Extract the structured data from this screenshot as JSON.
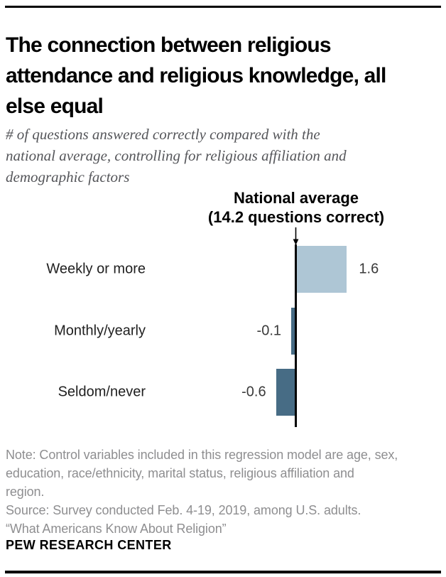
{
  "header": {
    "title": "The connection between religious attendance and religious knowledge, all else equal",
    "title_lines": [
      "The connection between religious",
      "attendance and religious knowledge, all",
      "else equal"
    ],
    "subtitle": "# of questions answered correctly compared with the national average, controlling for religious affiliation and demographic factors",
    "subtitle_lines": [
      "# of questions answered correctly compared with the",
      "national average, controlling for religious affiliation and",
      "demographic factors"
    ]
  },
  "chart_data": {
    "type": "bar",
    "orientation": "horizontal",
    "title": "The connection between religious attendance and religious knowledge, all else equal",
    "categories": [
      "Weekly or more",
      "Monthly/yearly",
      "Seldom/never"
    ],
    "values": [
      1.6,
      -0.1,
      -0.6
    ],
    "value_labels": [
      "1.6",
      "-0.1",
      "-0.6"
    ],
    "baseline_value": 14.2,
    "baseline_annotation_lines": [
      "National average",
      "(14.2 questions correct)"
    ],
    "bar_colors": [
      "#aec6d5",
      "#476c85",
      "#476c85"
    ],
    "axis_color": "#000000",
    "grid": false,
    "legend": false
  },
  "notes": {
    "note_lines": [
      "Note: Control variables included in this regression model are age, sex,",
      "education, race/ethnicity, marital status, religious affiliation and",
      "region."
    ],
    "source_line": "Source: Survey conducted Feb. 4-19, 2019, among U.S. adults.",
    "report_line": "“What Americans Know About Religion”"
  },
  "footer": {
    "brand": "PEW RESEARCH CENTER"
  }
}
